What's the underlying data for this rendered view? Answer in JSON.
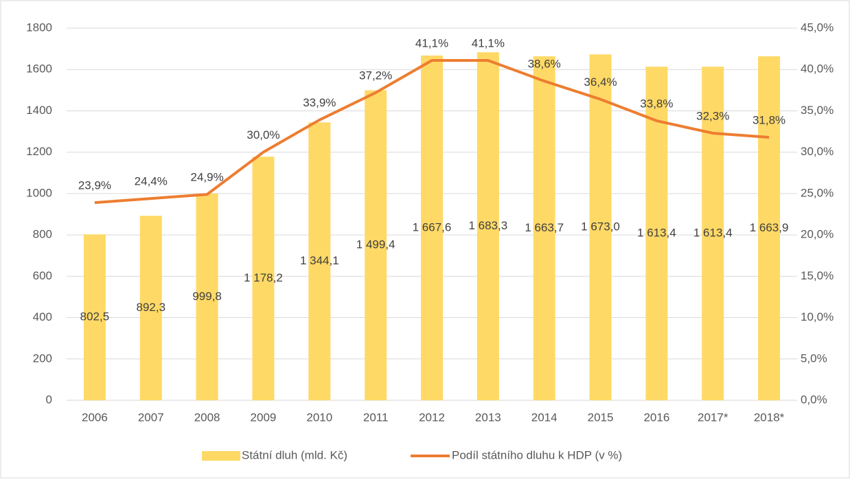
{
  "chart_data": {
    "type": "bar",
    "categories": [
      "2006",
      "2007",
      "2008",
      "2009",
      "2010",
      "2011",
      "2012",
      "2013",
      "2014",
      "2015",
      "2016",
      "2017*",
      "2018*"
    ],
    "series": [
      {
        "name": "Státní dluh (mld. Kč)",
        "type": "bar",
        "color": "#ffd966",
        "values": [
          802.5,
          892.3,
          999.8,
          1178.2,
          1344.1,
          1499.4,
          1667.6,
          1683.3,
          1663.7,
          1673.0,
          1613.4,
          1613.4,
          1663.9
        ],
        "value_labels": [
          "802,5",
          "892,3",
          "999,8",
          "1 178,2",
          "1 344,1",
          "1 499,4",
          "1 667,6",
          "1 683,3",
          "1 663,7",
          "1 673,0",
          "1 613,4",
          "1 613,4",
          "1 663,9"
        ]
      },
      {
        "name": "Podíl státního dluhu k HDP (v %)",
        "type": "line",
        "axis": "y2",
        "color": "#ed7d31",
        "values": [
          23.9,
          24.4,
          24.9,
          30.0,
          33.9,
          37.2,
          41.1,
          41.1,
          38.6,
          36.4,
          33.8,
          32.3,
          31.8
        ],
        "value_labels": [
          "23,9%",
          "24,4%",
          "24,9%",
          "30,0%",
          "33,9%",
          "37,2%",
          "41,1%",
          "41,1%",
          "38,6%",
          "36,4%",
          "33,8%",
          "32,3%",
          "31,8%"
        ]
      }
    ],
    "ylim": [
      0,
      1800
    ],
    "yticks": [
      0,
      200,
      400,
      600,
      800,
      1000,
      1200,
      1400,
      1600,
      1800
    ],
    "y2lim": [
      0,
      45
    ],
    "y2ticks": [
      {
        "value": 0,
        "label": "0,0%"
      },
      {
        "value": 5,
        "label": "5,0%"
      },
      {
        "value": 10,
        "label": "10,0%"
      },
      {
        "value": 15,
        "label": "15,0%"
      },
      {
        "value": 20,
        "label": "20,0%"
      },
      {
        "value": 25,
        "label": "25,0%"
      },
      {
        "value": 30,
        "label": "30,0%"
      },
      {
        "value": 35,
        "label": "35,0%"
      },
      {
        "value": 40,
        "label": "40,0%"
      },
      {
        "value": 45,
        "label": "45,0%"
      }
    ],
    "grid": true,
    "legend": "bottom"
  }
}
